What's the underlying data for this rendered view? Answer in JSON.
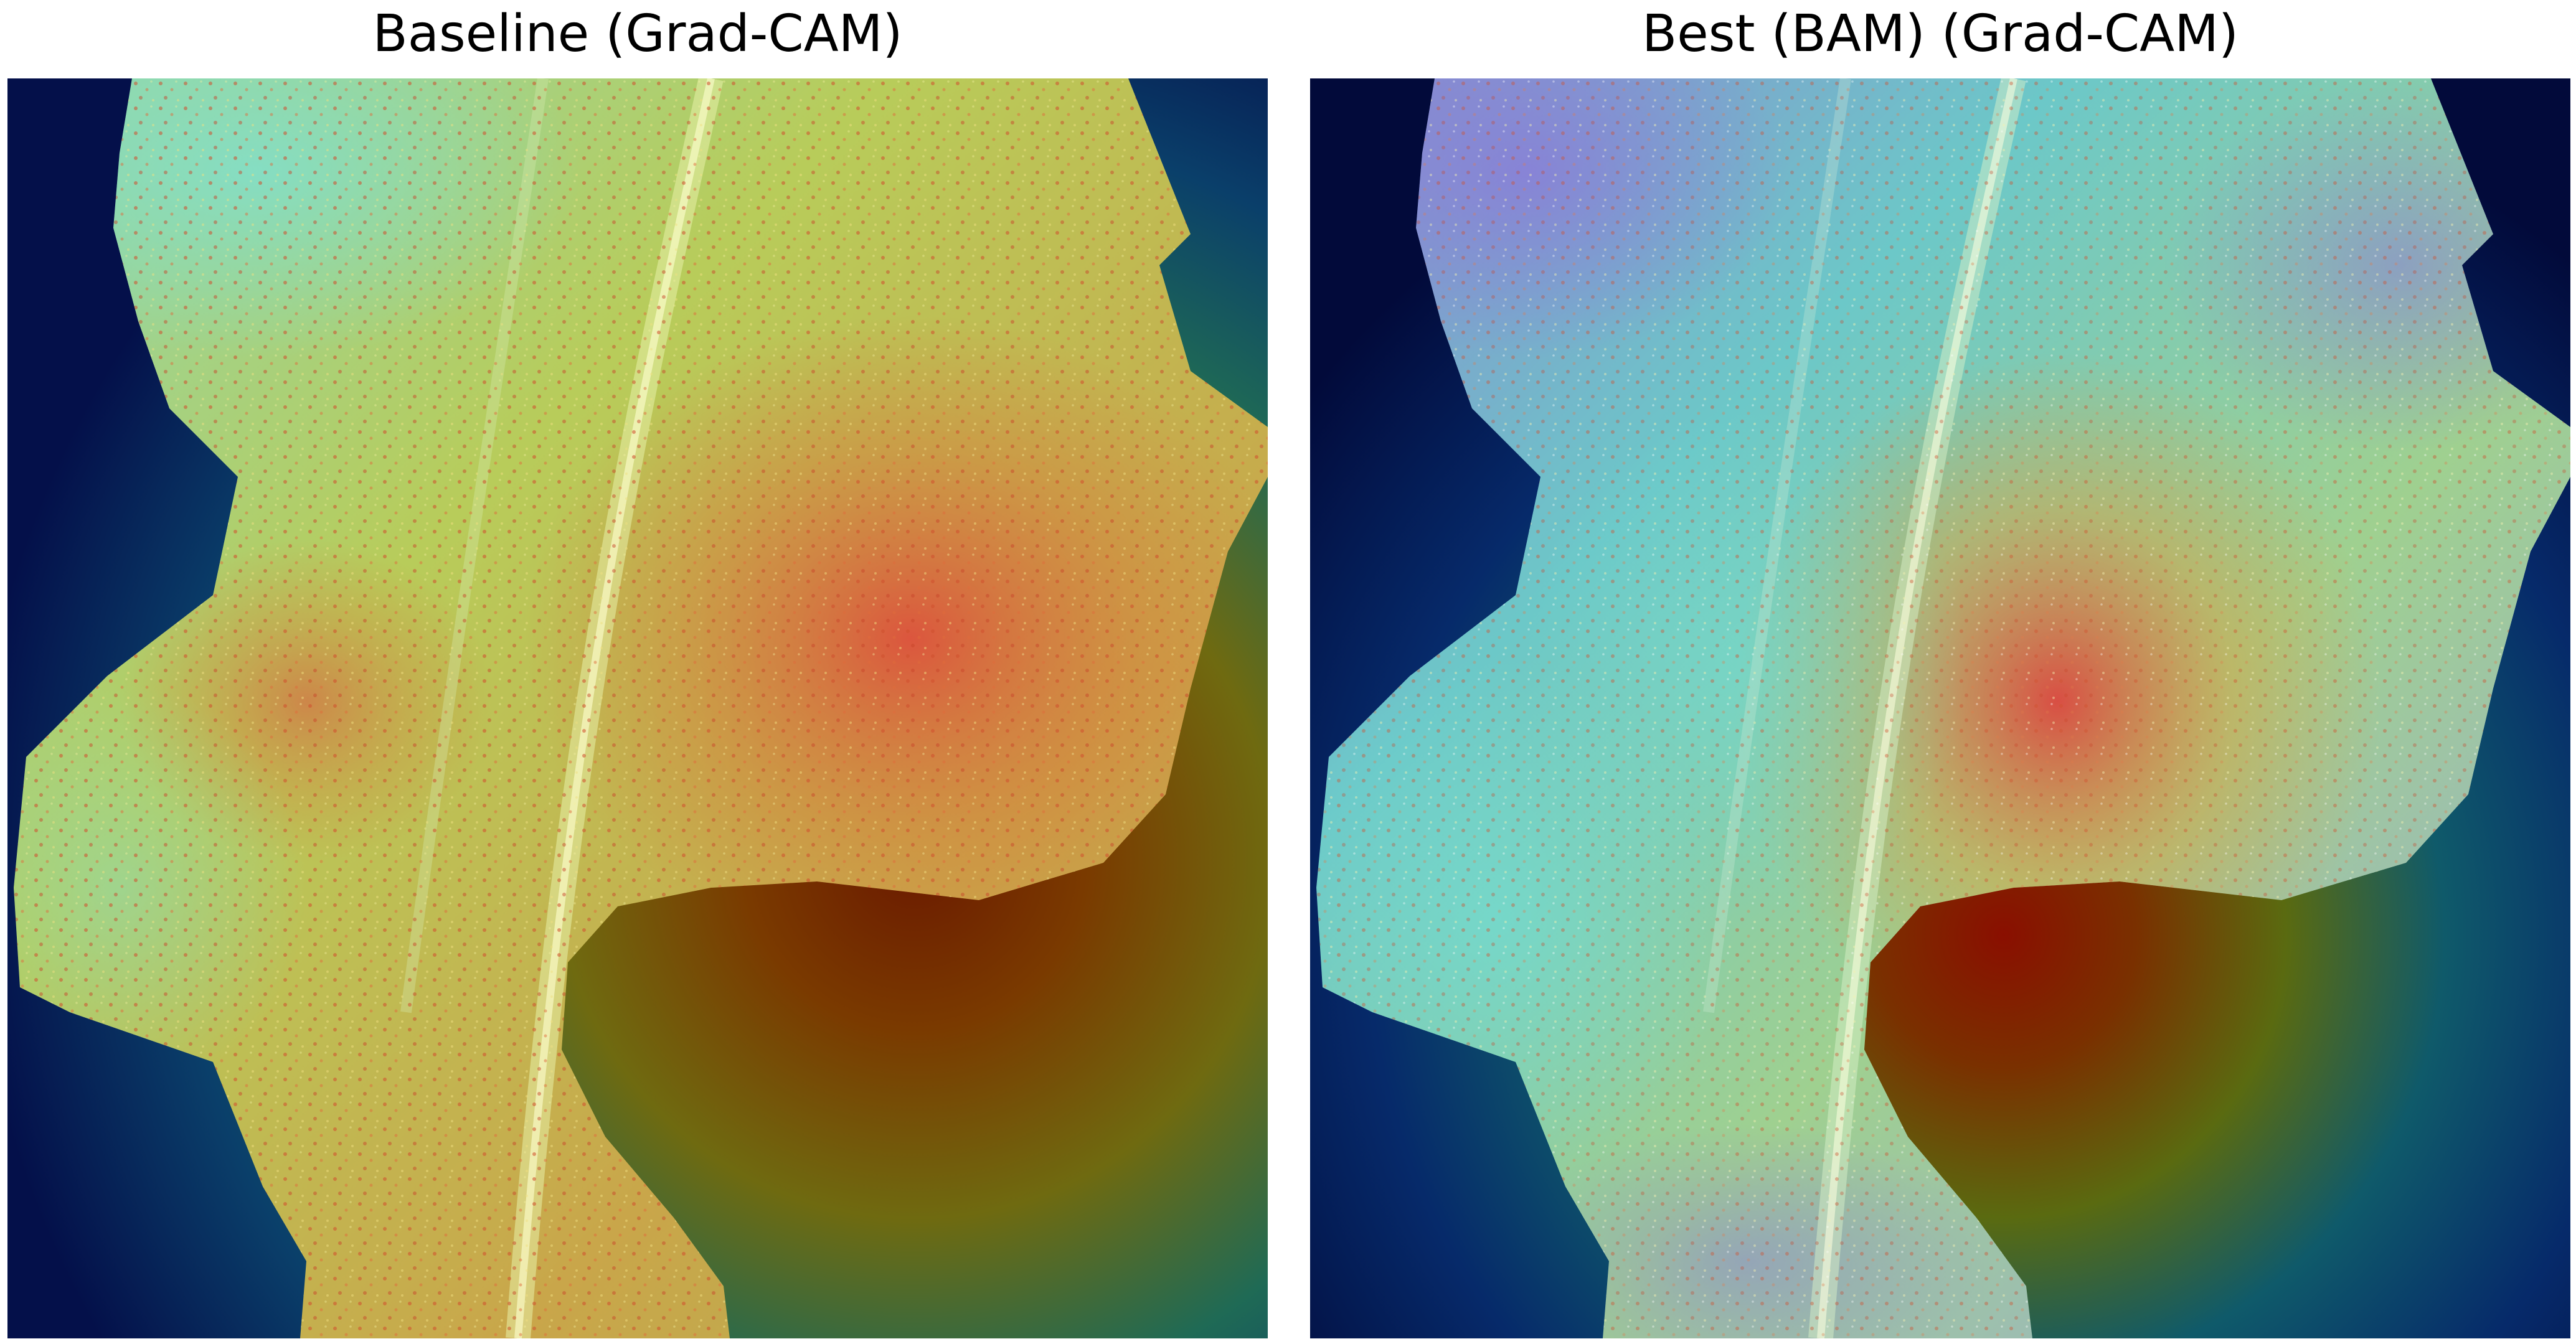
{
  "figure": {
    "panels": [
      {
        "title": "Baseline (Grad-CAM)",
        "image": "leaf-heatmap-overlay",
        "colormap": "jet",
        "activation_focus": "right-center"
      },
      {
        "title": "Best (BAM) (Grad-CAM)",
        "image": "leaf-heatmap-overlay",
        "colormap": "jet",
        "activation_focus": "center"
      }
    ]
  }
}
